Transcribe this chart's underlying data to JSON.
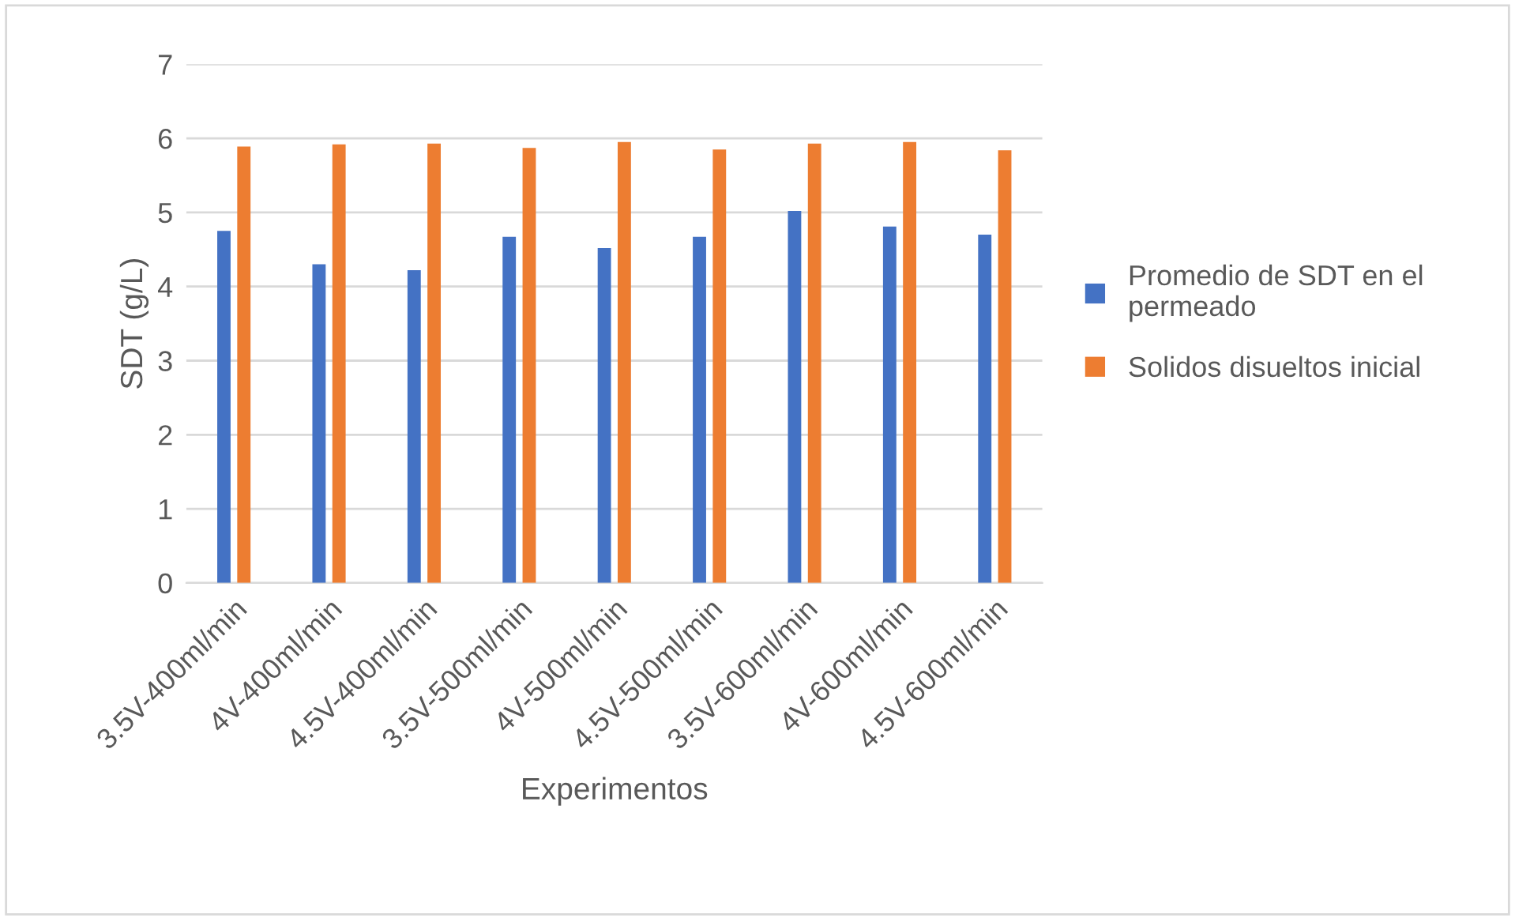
{
  "chart_data": {
    "type": "bar",
    "xlabel": "Experimentos",
    "ylabel": "SDT (g/L)",
    "categories": [
      "3.5V-400ml/min",
      "4V-400ml/min",
      "4.5V-400ml/min",
      "3.5V-500ml/min",
      "4V-500ml/min",
      "4.5V-500ml/min",
      "3.5V-600ml/min",
      "4V-600ml/min",
      "4.5V-600ml/min"
    ],
    "series": [
      {
        "name": "Promedio de SDT en el permeado",
        "color": "#4472c4",
        "values": [
          4.75,
          4.3,
          4.22,
          4.67,
          4.52,
          4.67,
          5.02,
          4.81,
          4.7
        ]
      },
      {
        "name": "Solidos disueltos inicial",
        "color": "#ed7d31",
        "values": [
          5.89,
          5.92,
          5.93,
          5.87,
          5.95,
          5.85,
          5.93,
          5.95,
          5.84
        ]
      }
    ],
    "ylim": [
      0,
      7
    ],
    "yticks": [
      0,
      1,
      2,
      3,
      4,
      5,
      6,
      7
    ],
    "grid": "y",
    "legend": "right"
  }
}
